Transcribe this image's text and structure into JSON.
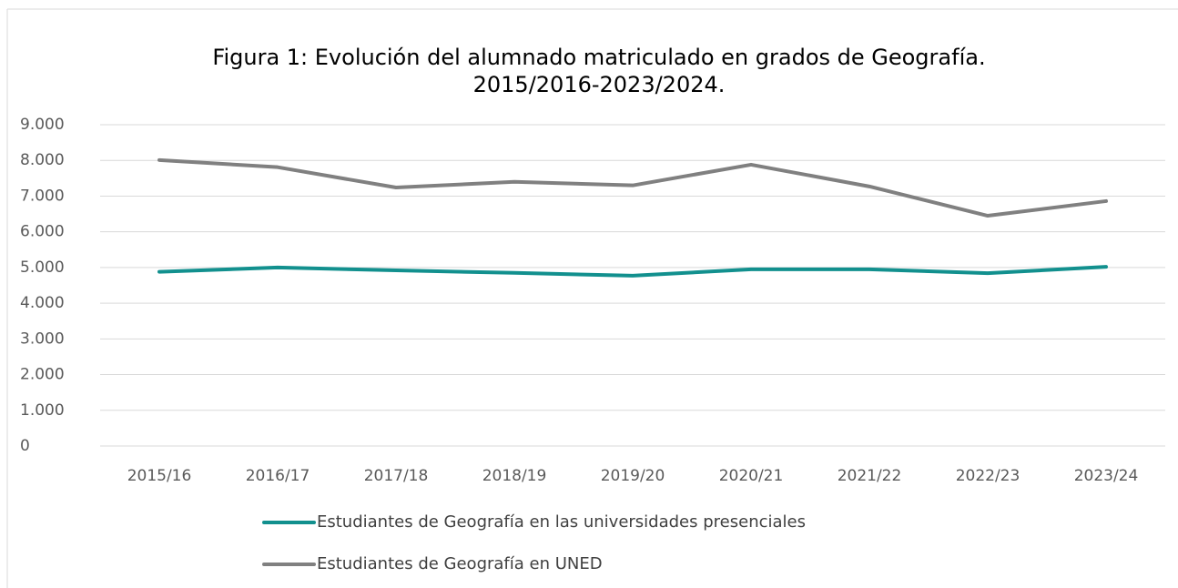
{
  "chart_data": {
    "type": "line",
    "title": [
      "Figura 1: Evolución del alumnado matriculado en grados de Geografía.",
      "2015/2016-2023/2024."
    ],
    "categories": [
      "2015/16",
      "2016/17",
      "2017/18",
      "2018/19",
      "2019/20",
      "2020/21",
      "2021/22",
      "2022/23",
      "2023/24"
    ],
    "series": [
      {
        "name": "Estudiantes de Geografía en las universidades presenciales",
        "color": "#12908e",
        "values": [
          4880,
          5000,
          4920,
          4850,
          4770,
          4950,
          4950,
          4840,
          5020
        ]
      },
      {
        "name": "Estudiantes de Geografía en UNED",
        "color": "#808080",
        "values": [
          8010,
          7810,
          7240,
          7400,
          7300,
          7880,
          7270,
          6450,
          6860
        ]
      }
    ],
    "ylim": [
      0,
      9000
    ],
    "yticks": [
      0,
      {
        "value": 1000,
        "label": "1.000"
      },
      {
        "value": 2000,
        "label": "2.000"
      },
      {
        "value": 3000,
        "label": "3.000"
      },
      {
        "value": 4000,
        "label": "4.000"
      },
      {
        "value": 5000,
        "label": "5.000"
      },
      {
        "value": 6000,
        "label": "6.000"
      },
      {
        "value": 7000,
        "label": "7.000"
      },
      {
        "value": 8000,
        "label": "8.000"
      },
      {
        "value": 9000,
        "label": "9.000"
      }
    ],
    "grid": true,
    "legend": "bottom"
  }
}
